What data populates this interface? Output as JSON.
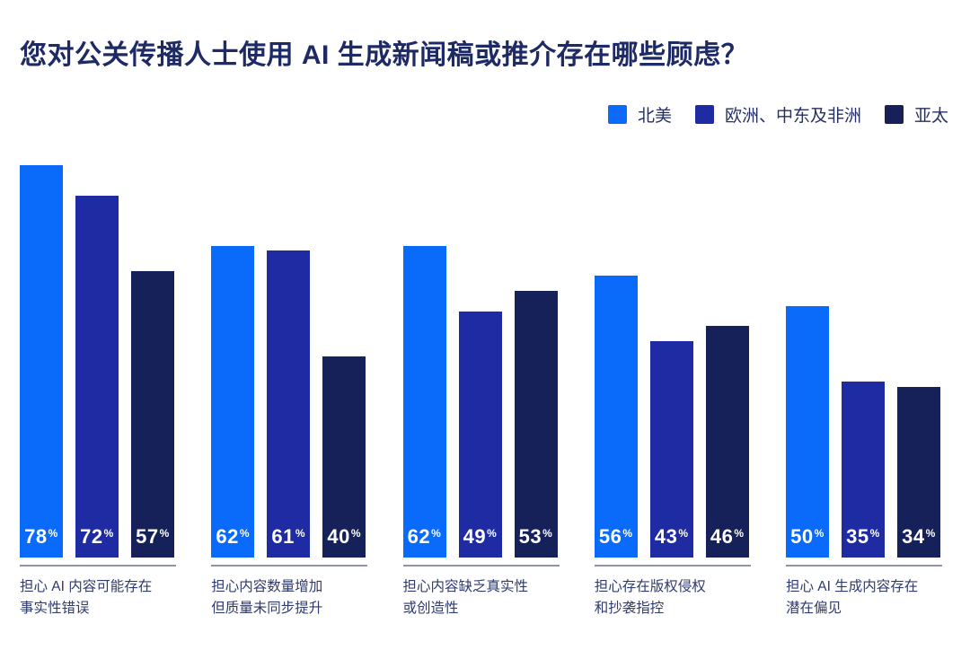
{
  "title": "您对公关传播人士使用 AI 生成新闻稿或推介存在哪些顾虑？",
  "colors": {
    "title_text": "#1e2a66",
    "category_text": "#2f3a6e",
    "legend_text": "#252f66",
    "divider": "#9094aa",
    "bar_value_text": "#ffffff",
    "background": "#ffffff",
    "series_north_america": "#0a6bfa",
    "series_emea": "#1f2ba3",
    "series_apac": "#16215a"
  },
  "chart_data": {
    "type": "bar",
    "title": "您对公关传播人士使用 AI 生成新闻稿或推介存在哪些顾虑？",
    "categories": [
      "担心 AI 内容可能存在\n事实性错误",
      "担心内容数量增加\n但质量未同步提升",
      "担心内容缺乏真实性\n或创造性",
      "担心存在版权侵权\n和抄袭指控",
      "担心 AI 生成内容存在\n潜在偏见"
    ],
    "series": [
      {
        "name": "北美",
        "color": "#0a6bfa",
        "values": [
          78,
          62,
          62,
          56,
          50
        ]
      },
      {
        "name": "欧洲、中东及非洲",
        "color": "#1f2ba3",
        "values": [
          72,
          61,
          49,
          43,
          35
        ]
      },
      {
        "name": "亚太",
        "color": "#16215a",
        "values": [
          57,
          40,
          53,
          46,
          34
        ]
      }
    ],
    "value_suffix": "%",
    "value_labels_shown": true,
    "xlabel": "",
    "ylabel": "",
    "ylim": [
      0,
      100
    ],
    "grid": false,
    "legend_position": "top-right"
  }
}
